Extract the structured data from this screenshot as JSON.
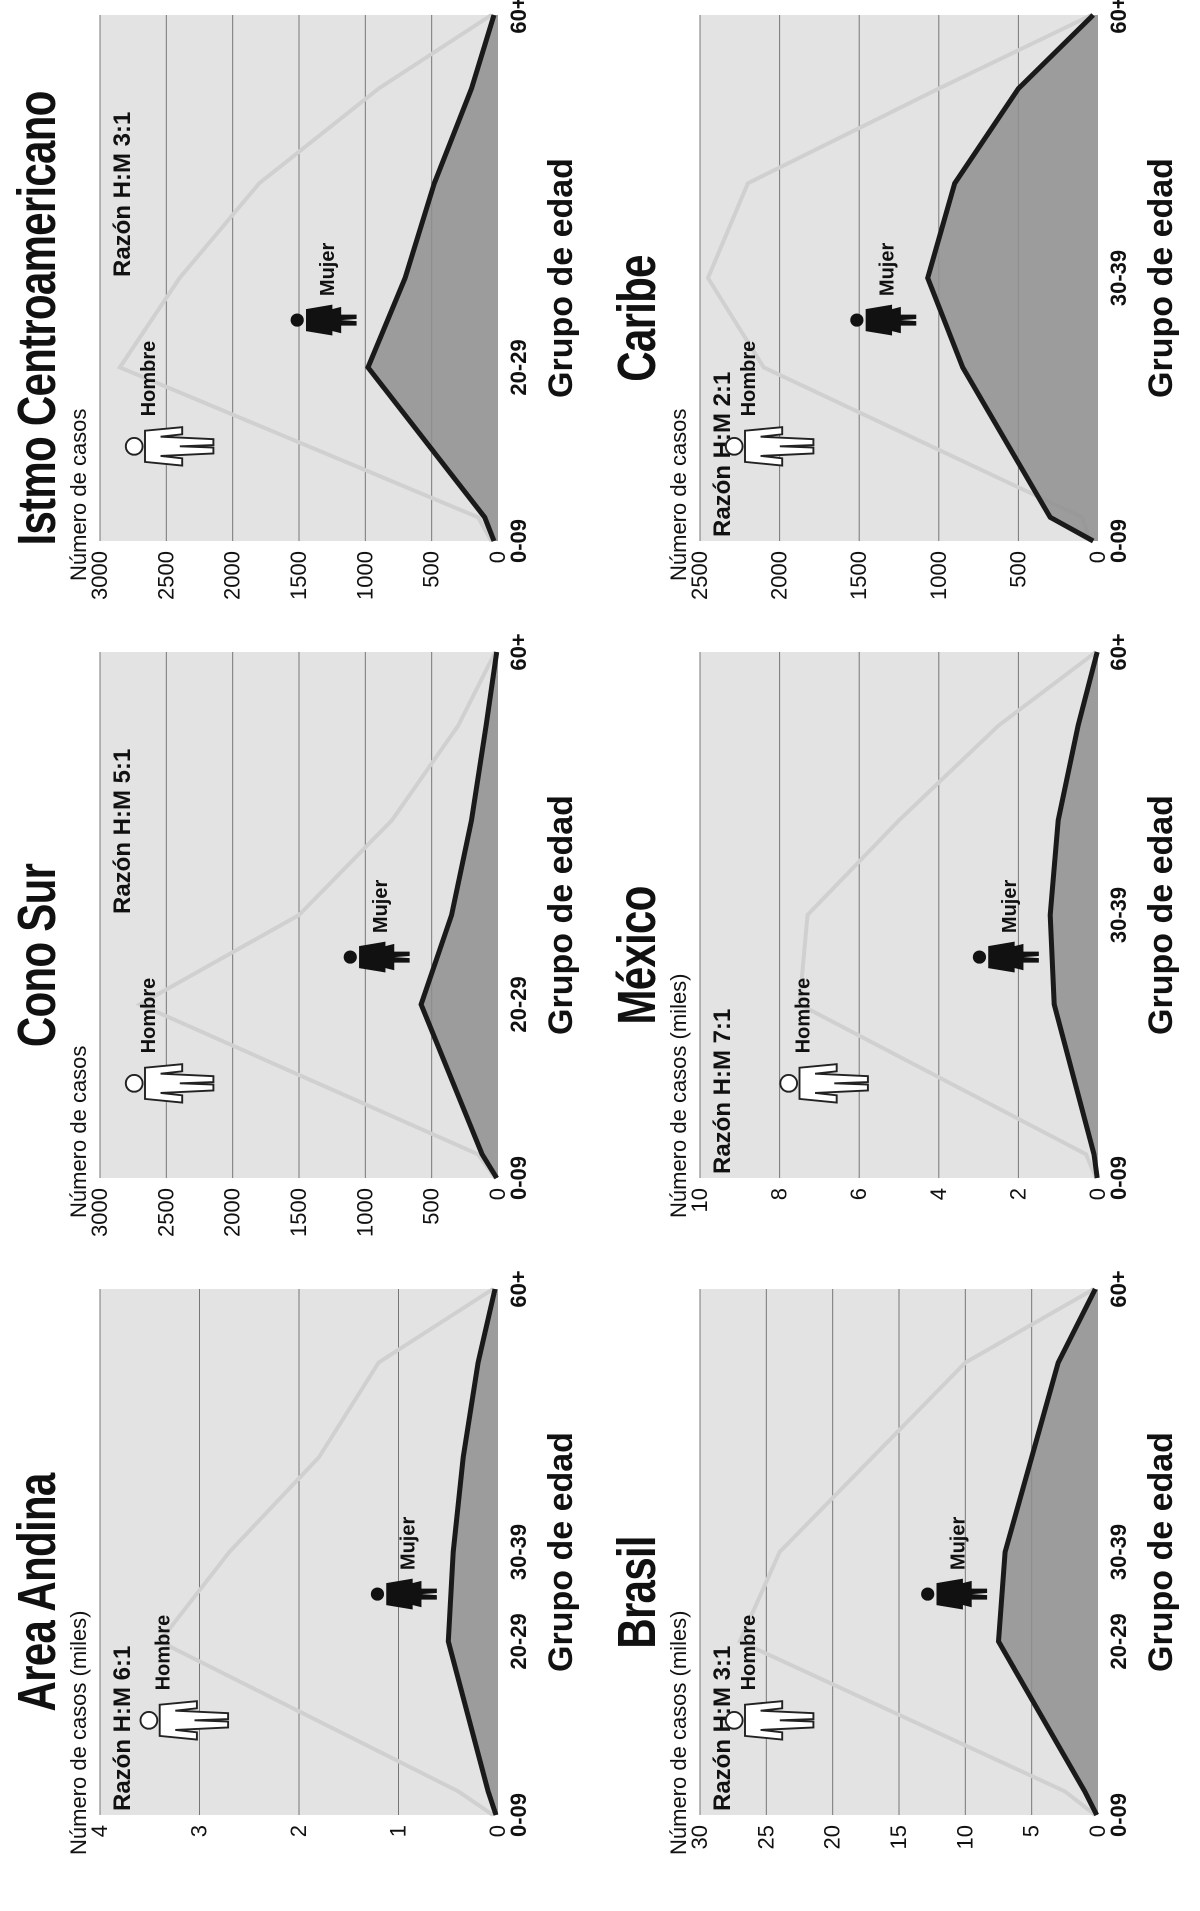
{
  "colors": {
    "plot_bg": "#e3e3e3",
    "area_fill": "#8f8f8f",
    "men_line": "#d0d0d0",
    "women_line": "#1a1a1a",
    "grid": "#777777",
    "text": "#111111"
  },
  "icons": {
    "man": "man-figure-icon",
    "woman": "woman-figure-icon"
  },
  "chart_data": [
    {
      "type": "line",
      "title": "Area Andina",
      "ylabel": "Número de casos (miles)",
      "xlabel": "Grupo de edad",
      "ratio": "Razón H:M 6:1",
      "x_ticks": [
        "0-09",
        "20-29",
        "30-39",
        "60+"
      ],
      "y_ticks": [
        "0",
        "1",
        "2",
        "3",
        "4"
      ],
      "ylim": [
        0,
        4
      ],
      "grid": true,
      "man_label": "Hombre",
      "woman_label": "Mujer",
      "series": [
        {
          "key": "men",
          "values": [
            0.05,
            0.4,
            3.4,
            2.7,
            1.8,
            1.2,
            0.05
          ]
        },
        {
          "key": "women",
          "values": [
            0.02,
            0.1,
            0.5,
            0.45,
            0.35,
            0.2,
            0.03
          ]
        }
      ]
    },
    {
      "type": "line",
      "title": "Cono Sur",
      "ylabel": "Número de casos",
      "xlabel": "Grupo de edad",
      "ratio": "Razón H:M 5:1",
      "x_ticks": [
        "0-09",
        "20-29",
        "60+"
      ],
      "y_ticks": [
        "0",
        "500",
        "1000",
        "1500",
        "2000",
        "2500",
        "3000"
      ],
      "ylim": [
        0,
        3000
      ],
      "grid": true,
      "man_label": "Hombre",
      "woman_label": "Mujer",
      "series": [
        {
          "key": "men",
          "values": [
            20,
            150,
            2700,
            1500,
            800,
            300,
            20
          ]
        },
        {
          "key": "women",
          "values": [
            10,
            120,
            580,
            350,
            200,
            90,
            10
          ]
        }
      ]
    },
    {
      "type": "line",
      "title": "Istmo Centroamericano",
      "ylabel": "Número de casos",
      "xlabel": "Grupo de edad",
      "ratio": "Razón H:M 3:1",
      "x_ticks": [
        "0-09",
        "20-29",
        "60+"
      ],
      "y_ticks": [
        "0",
        "500",
        "1000",
        "1500",
        "2000",
        "2500",
        "3000"
      ],
      "ylim": [
        0,
        3000
      ],
      "grid": true,
      "man_label": "Hombre",
      "woman_label": "Mujer",
      "series": [
        {
          "key": "men",
          "values": [
            50,
            150,
            2850,
            2400,
            1800,
            900,
            50
          ]
        },
        {
          "key": "women",
          "values": [
            30,
            100,
            980,
            700,
            480,
            200,
            30
          ]
        }
      ]
    },
    {
      "type": "line",
      "title": "Brasil",
      "ylabel": "Número de casos (miles)",
      "xlabel": "Grupo de edad",
      "ratio": "Razón H:M 3:1",
      "x_ticks": [
        "0-09",
        "20-29",
        "30-39",
        "60+"
      ],
      "y_ticks": [
        "0",
        "5",
        "10",
        "15",
        "20",
        "25",
        "30"
      ],
      "ylim": [
        0,
        30
      ],
      "grid": true,
      "man_label": "Hombre",
      "woman_label": "Mujer",
      "series": [
        {
          "key": "men",
          "values": [
            0.2,
            2.5,
            27,
            24,
            17,
            10,
            0.3
          ]
        },
        {
          "key": "women",
          "values": [
            0.1,
            1,
            7.5,
            7,
            5,
            3,
            0.2
          ]
        }
      ]
    },
    {
      "type": "line",
      "title": "México",
      "ylabel": "Número de casos (miles)",
      "xlabel": "Grupo de edad",
      "ratio": "Razón H:M 7:1",
      "x_ticks": [
        "0-09",
        "30-39",
        "60+"
      ],
      "y_ticks": [
        "0",
        "2",
        "4",
        "6",
        "8",
        "10"
      ],
      "ylim": [
        0,
        10
      ],
      "grid": true,
      "man_label": "Hombre",
      "woman_label": "Mujer",
      "series": [
        {
          "key": "men",
          "values": [
            0.05,
            0.3,
            7.5,
            7.3,
            5,
            2.5,
            0.05
          ]
        },
        {
          "key": "women",
          "values": [
            0.02,
            0.1,
            1.1,
            1.2,
            1.0,
            0.5,
            0.02
          ]
        }
      ]
    },
    {
      "type": "line",
      "title": "Caribe",
      "ylabel": "Número de casos",
      "xlabel": "Grupo de edad",
      "ratio": "Razón H:M 2:1",
      "x_ticks": [
        "0-09",
        "30-39",
        "60+"
      ],
      "y_ticks": [
        "0",
        "500",
        "1000",
        "1500",
        "2000",
        "2500"
      ],
      "ylim": [
        0,
        2500
      ],
      "grid": true,
      "man_label": "Hombre",
      "woman_label": "Mujer",
      "series": [
        {
          "key": "men",
          "values": [
            50,
            100,
            2100,
            2450,
            2200,
            1000,
            40
          ]
        },
        {
          "key": "women",
          "values": [
            30,
            300,
            850,
            1070,
            900,
            500,
            30
          ]
        }
      ]
    }
  ]
}
